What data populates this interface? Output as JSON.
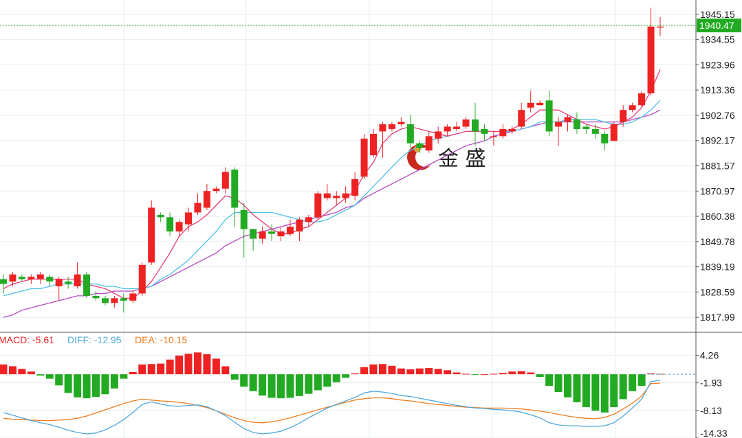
{
  "watermark": {
    "brand": "金 盛"
  },
  "chart_data": [
    {
      "type": "candlestick",
      "ylim": [
        1812,
        1950
      ],
      "y_ticks": [
        "1945.15",
        "1934.55",
        "1923.96",
        "1913.36",
        "1902.76",
        "1892.17",
        "1881.57",
        "1870.97",
        "1860.38",
        "1849.78",
        "1839.19",
        "1828.59",
        "1817.99"
      ],
      "last_price": "1940.47",
      "colors": {
        "up": "#ee2222",
        "down": "#22aa22",
        "ma_short": "#e83a78",
        "ma_mid": "#4fc0e6",
        "ma_long": "#b645c4",
        "last_line": "#22aa22"
      },
      "candles": [
        [
          1834,
          1832,
          1836,
          1828
        ],
        [
          1833,
          1836,
          1837,
          1831
        ],
        [
          1835,
          1834,
          1836,
          1833
        ],
        [
          1834,
          1835,
          1836,
          1832
        ],
        [
          1834,
          1836,
          1837,
          1832
        ],
        [
          1835,
          1833,
          1836,
          1831
        ],
        [
          1831,
          1834,
          1835,
          1825
        ],
        [
          1833,
          1832,
          1835,
          1830
        ],
        [
          1831,
          1836,
          1841,
          1830
        ],
        [
          1836,
          1827,
          1837,
          1826
        ],
        [
          1827,
          1826,
          1829,
          1825
        ],
        [
          1826,
          1824,
          1827,
          1823
        ],
        [
          1824,
          1826,
          1827,
          1822
        ],
        [
          1826,
          1825,
          1828,
          1820
        ],
        [
          1825,
          1828,
          1829,
          1824
        ],
        [
          1828,
          1840,
          1841,
          1827
        ],
        [
          1841,
          1864,
          1867,
          1840
        ],
        [
          1861,
          1860,
          1862,
          1858
        ],
        [
          1860,
          1854,
          1862,
          1852
        ],
        [
          1854,
          1858,
          1859,
          1852
        ],
        [
          1857,
          1862,
          1864,
          1854
        ],
        [
          1862,
          1866,
          1870,
          1861
        ],
        [
          1864,
          1871,
          1874,
          1863
        ],
        [
          1871,
          1872,
          1873,
          1870
        ],
        [
          1872,
          1879,
          1881,
          1870
        ],
        [
          1880,
          1864,
          1881,
          1856
        ],
        [
          1863,
          1855,
          1866,
          1843
        ],
        [
          1855,
          1851,
          1855,
          1846
        ],
        [
          1851,
          1854,
          1856,
          1849
        ],
        [
          1854,
          1853,
          1857,
          1850
        ],
        [
          1852,
          1854,
          1856,
          1850
        ],
        [
          1853,
          1856,
          1859,
          1852
        ],
        [
          1854,
          1859,
          1860,
          1850
        ],
        [
          1858,
          1860,
          1861,
          1856
        ],
        [
          1860,
          1870,
          1871,
          1859
        ],
        [
          1868,
          1870,
          1874,
          1867
        ],
        [
          1868,
          1869,
          1871,
          1865
        ],
        [
          1868,
          1870,
          1873,
          1866
        ],
        [
          1869,
          1876,
          1879,
          1867
        ],
        [
          1877,
          1893,
          1895,
          1876
        ],
        [
          1886,
          1895,
          1897,
          1885
        ],
        [
          1896,
          1899,
          1900,
          1885
        ],
        [
          1897,
          1899,
          1900,
          1896
        ],
        [
          1899,
          1900,
          1902,
          1898
        ],
        [
          1899,
          1891,
          1903,
          1889
        ],
        [
          1891,
          1889,
          1892,
          1887
        ],
        [
          1888,
          1894,
          1896,
          1887
        ],
        [
          1893,
          1896,
          1898,
          1891
        ],
        [
          1896,
          1898,
          1899,
          1894
        ],
        [
          1897,
          1898,
          1900,
          1896
        ],
        [
          1898,
          1901,
          1902,
          1897
        ],
        [
          1901,
          1896,
          1908,
          1890
        ],
        [
          1897,
          1895,
          1899,
          1892
        ],
        [
          1894,
          1894,
          1896,
          1890
        ],
        [
          1894,
          1897,
          1899,
          1893
        ],
        [
          1896,
          1897,
          1898,
          1895
        ],
        [
          1898,
          1905,
          1908,
          1897
        ],
        [
          1906,
          1908,
          1913,
          1904
        ],
        [
          1907,
          1908,
          1909,
          1907
        ],
        [
          1909,
          1896,
          1913,
          1894
        ],
        [
          1898,
          1900,
          1902,
          1890
        ],
        [
          1900,
          1902,
          1903,
          1896
        ],
        [
          1901,
          1897,
          1904,
          1895
        ],
        [
          1898,
          1897,
          1899,
          1895
        ],
        [
          1897,
          1895,
          1899,
          1893
        ],
        [
          1895,
          1891,
          1896,
          1888
        ],
        [
          1892,
          1899,
          1900,
          1892
        ],
        [
          1900,
          1905,
          1907,
          1898
        ],
        [
          1905,
          1907,
          1908,
          1904
        ],
        [
          1907,
          1912,
          1913,
          1906
        ],
        [
          1912,
          1940,
          1948,
          1911
        ],
        [
          1940,
          1940,
          1944,
          1936
        ]
      ],
      "moving_averages": [
        {
          "name": "MA-short",
          "values": [
            1830,
            1832,
            1833,
            1834,
            1834,
            1834,
            1834,
            1834,
            1834,
            1832,
            1831,
            1830,
            1828,
            1826,
            1826,
            1829,
            1833,
            1839,
            1845,
            1852,
            1856,
            1858,
            1861,
            1865,
            1869,
            1868,
            1865,
            1861,
            1858,
            1855,
            1853,
            1853,
            1855,
            1856,
            1859,
            1862,
            1865,
            1868,
            1871,
            1878,
            1883,
            1891,
            1895,
            1897,
            1898,
            1897,
            1896,
            1895,
            1894,
            1895,
            1896,
            1896,
            1896,
            1896,
            1896,
            1897,
            1899,
            1902,
            1905,
            1905,
            1905,
            1903,
            1901,
            1899,
            1898,
            1897,
            1898,
            1900,
            1902,
            1906,
            1913,
            1922
          ]
        },
        {
          "name": "MA-mid",
          "values": [
            1827,
            1828,
            1829,
            1830,
            1830,
            1831,
            1832,
            1832,
            1832,
            1832,
            1832,
            1831,
            1831,
            1830,
            1830,
            1830,
            1831,
            1834,
            1836,
            1839,
            1842,
            1846,
            1850,
            1854,
            1859,
            1862,
            1862,
            1862,
            1862,
            1862,
            1861,
            1860,
            1859,
            1858,
            1858,
            1859,
            1861,
            1863,
            1865,
            1869,
            1873,
            1877,
            1881,
            1885,
            1888,
            1890,
            1892,
            1893,
            1894,
            1895,
            1896,
            1896,
            1896,
            1896,
            1896,
            1896,
            1897,
            1898,
            1900,
            1900,
            1900,
            1901,
            1901,
            1901,
            1901,
            1900,
            1899,
            1899,
            1900,
            1902,
            1905,
            1909
          ]
        },
        {
          "name": "MA-long",
          "values": [
            1818,
            1819,
            1821,
            1822,
            1823,
            1824,
            1825,
            1826,
            1827,
            1827,
            1828,
            1828,
            1829,
            1829,
            1829,
            1830,
            1831,
            1833,
            1835,
            1837,
            1839,
            1841,
            1843,
            1845,
            1848,
            1850,
            1852,
            1853,
            1854,
            1855,
            1856,
            1857,
            1858,
            1859,
            1860,
            1861,
            1862,
            1864,
            1865,
            1868,
            1870,
            1872,
            1874,
            1876,
            1878,
            1880,
            1882,
            1884,
            1886,
            1888,
            1890,
            1891,
            1892,
            1894,
            1895,
            1896,
            1897,
            1898,
            1899,
            1900,
            1900,
            1900,
            1900,
            1900,
            1900,
            1900,
            1900,
            1900,
            1901,
            1902,
            1903,
            1905
          ]
        }
      ]
    },
    {
      "type": "bar",
      "ylim": [
        -14.33,
        6.5
      ],
      "y_ticks": [
        "4.26",
        "-1.93",
        "-8.13",
        "-14.33"
      ],
      "legend": {
        "macd": "MACD: -5.61",
        "diff": "DIFF: -12.95",
        "dea": "DEA: -10.15"
      },
      "colors": {
        "macd": "#ee2222",
        "diff": "#4fa8dc",
        "dea": "#ee7c1e",
        "pos": "#ee2222",
        "neg": "#22aa22"
      },
      "macd_bars": [
        2.2,
        1.8,
        1.2,
        0.6,
        -0.3,
        -1.0,
        -2.5,
        -4.2,
        -5.2,
        -5.4,
        -5.1,
        -4.5,
        -3.2,
        -1.0,
        0.5,
        2.2,
        2.3,
        2.4,
        3.3,
        4.2,
        4.6,
        4.9,
        4.5,
        3.5,
        1.8,
        -1.2,
        -2.8,
        -3.8,
        -4.8,
        -5.3,
        -5.4,
        -5.3,
        -4.9,
        -4.4,
        -3.6,
        -2.8,
        -1.8,
        -0.8,
        0.2,
        1.6,
        2.2,
        2.3,
        1.9,
        1.3,
        1.1,
        1.3,
        1.4,
        1.2,
        0.9,
        0.4,
        0.1,
        -0.1,
        0.0,
        0.1,
        0.3,
        0.6,
        0.7,
        0.4,
        -0.6,
        -2.6,
        -4.0,
        -5.2,
        -6.3,
        -7.4,
        -8.2,
        -8.6,
        -7.4,
        -5.6,
        -3.8,
        -2.6,
        0.2,
        0.1
      ],
      "diff": [
        -8.6,
        -9.2,
        -9.8,
        -10.4,
        -10.9,
        -11.3,
        -11.9,
        -12.6,
        -13.1,
        -13.4,
        -13.2,
        -12.5,
        -11.5,
        -10.2,
        -8.6,
        -6.8,
        -6.2,
        -6.7,
        -7.1,
        -7.2,
        -7.0,
        -6.9,
        -7.3,
        -8.2,
        -9.3,
        -10.8,
        -12.2,
        -13.1,
        -13.4,
        -13.2,
        -12.8,
        -12.0,
        -11.0,
        -9.8,
        -8.7,
        -7.6,
        -6.8,
        -6.0,
        -5.2,
        -4.2,
        -3.8,
        -4.0,
        -4.3,
        -4.8,
        -5.0,
        -5.4,
        -5.8,
        -6.2,
        -6.6,
        -7.0,
        -7.3,
        -7.6,
        -7.7,
        -7.9,
        -8.0,
        -8.2,
        -8.5,
        -9.1,
        -9.8,
        -10.9,
        -11.4,
        -11.6,
        -11.6,
        -11.7,
        -11.7,
        -11.6,
        -10.9,
        -9.4,
        -7.6,
        -5.6,
        -1.7,
        -1.3
      ],
      "dea": [
        -9.9,
        -10.1,
        -10.2,
        -10.3,
        -10.4,
        -10.4,
        -10.3,
        -10.2,
        -9.9,
        -9.4,
        -8.7,
        -8.0,
        -7.3,
        -6.6,
        -6.0,
        -5.6,
        -5.8,
        -6.0,
        -6.1,
        -6.3,
        -6.6,
        -7.0,
        -7.5,
        -8.2,
        -9.0,
        -9.8,
        -10.4,
        -10.8,
        -10.9,
        -10.7,
        -10.3,
        -9.8,
        -9.2,
        -8.6,
        -8.0,
        -7.4,
        -6.9,
        -6.3,
        -5.8,
        -5.5,
        -5.3,
        -5.3,
        -5.5,
        -5.8,
        -6.0,
        -6.3,
        -6.6,
        -6.8,
        -7.0,
        -7.2,
        -7.4,
        -7.5,
        -7.6,
        -7.6,
        -7.6,
        -7.7,
        -7.8,
        -8.0,
        -8.3,
        -8.6,
        -9.0,
        -9.4,
        -9.7,
        -9.9,
        -10.0,
        -9.7,
        -9.0,
        -7.8,
        -6.5,
        -4.9,
        -2.1,
        -2.0
      ]
    }
  ]
}
